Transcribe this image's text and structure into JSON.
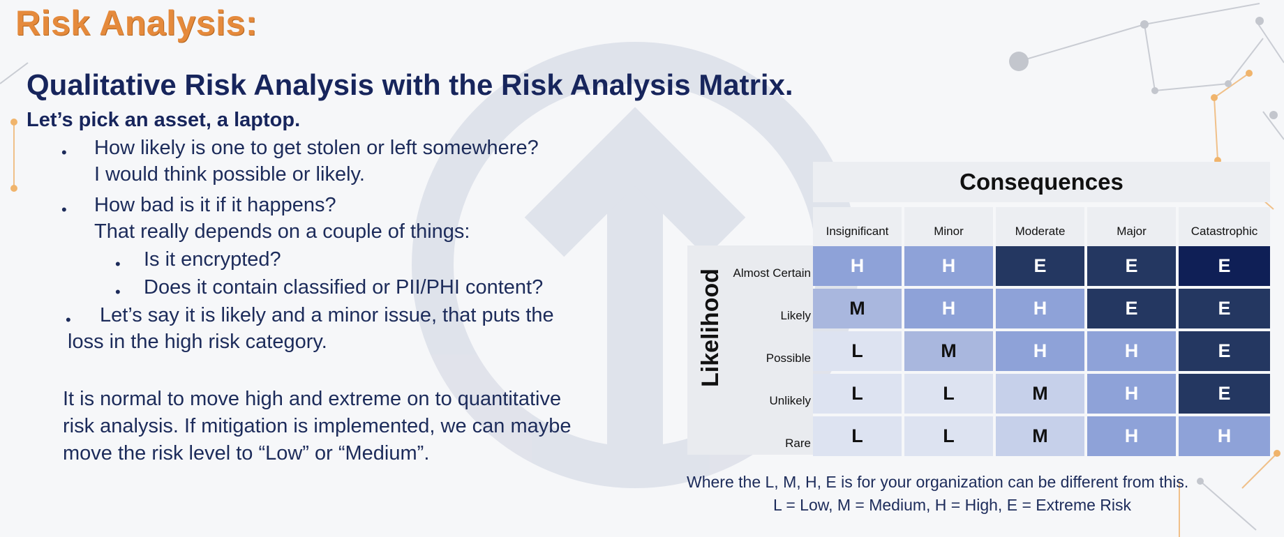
{
  "title": "Risk Analysis:",
  "subtitle": "Qualitative Risk Analysis with the Risk Analysis Matrix.",
  "lead": "Let’s pick an asset, a laptop.",
  "bullets": {
    "q1": "How likely is one to get stolen or left somewhere?",
    "a1": "I would think possible or likely.",
    "q2": "How bad is it if it happens?",
    "a2": "That really depends on a couple of things:",
    "sub1": "Is it encrypted?",
    "sub2": "Does it contain classified or PII/PHI content?",
    "q3_line1": "Let’s say it is likely and a minor issue, that puts the",
    "q3_line2": "loss in the high risk category."
  },
  "paragraph": {
    "line1": "It is normal to move high and extreme on to quantitative",
    "line2": "risk analysis. If mitigation is implemented,  we can maybe",
    "line3": "move the risk level to “Low” or “Medium”."
  },
  "matrix": {
    "header": "Consequences",
    "side_label": "Likelihood",
    "columns": [
      "Insignificant",
      "Minor",
      "Moderate",
      "Major",
      "Catastrophic"
    ],
    "rows": [
      {
        "label": "Almost Certain",
        "cells": [
          "H",
          "H",
          "E",
          "E",
          "E"
        ]
      },
      {
        "label": "Likely",
        "cells": [
          "M",
          "H",
          "H",
          "E",
          "E"
        ]
      },
      {
        "label": "Possible",
        "cells": [
          "L",
          "M",
          "H",
          "H",
          "E"
        ]
      },
      {
        "label": "Unlikely",
        "cells": [
          "L",
          "L",
          "M",
          "H",
          "E"
        ]
      },
      {
        "label": "Rare",
        "cells": [
          "L",
          "L",
          "M",
          "H",
          "H"
        ]
      }
    ]
  },
  "notes": {
    "line1": "Where the L, M, H, E is for your organization can be different from this.",
    "line2": "L = Low, M = Medium, H = High, E = Extreme Risk"
  },
  "colors": {
    "title": "#e58a3c",
    "text": "#17255c",
    "cell_L": "#dde3f1",
    "cell_M_light": "#c6d0ea",
    "cell_M_dark": "#a9b7de",
    "cell_H": "#8ea2d8",
    "cell_H_dark": "#7e93d0",
    "cell_E": "#243761",
    "cell_E_darkest": "#0f1f56"
  }
}
